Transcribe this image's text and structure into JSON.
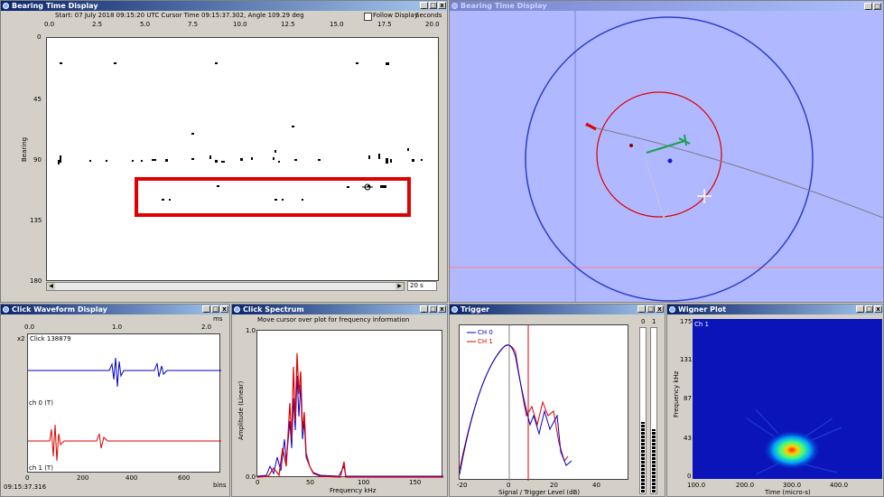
{
  "bearing_time": {
    "title": "Bearing Time Display",
    "info": "Start: 07 July 2018 09:15:20 UTC   Cursor Time 09:15:37.302, Angle 109.29 deg",
    "follow_label": "Follow Display",
    "seconds_label": "Seconds",
    "x_ticks": [
      "0.0",
      "2.5",
      "5.0",
      "7.5",
      "10.0",
      "12.5",
      "15.0",
      "17.5",
      "20.0"
    ],
    "y_ticks": [
      "0",
      "45",
      "90",
      "135",
      "180"
    ],
    "y_axis_label": "Bearing",
    "span_value": "20 s"
  },
  "map_view": {
    "title": "Bearing Time Display",
    "bg_color": "#b0b8ff"
  },
  "click_waveform": {
    "title": "Click Waveform Display",
    "unit": "ms",
    "x_ticks": [
      "0.0",
      "1.0",
      "2.0"
    ],
    "scale": "x2",
    "click_label": "Click 138879",
    "ch0_label": "ch 0 (T)",
    "ch1_label": "ch 1 (T)",
    "bins_ticks": [
      "0",
      "200",
      "400",
      "600"
    ],
    "bins_label": "bins",
    "time_label": "09:15:37.316"
  },
  "click_spectrum": {
    "title": "Click Spectrum",
    "hint": "Move cursor over plot for frequency information",
    "y_ticks": [
      "1.0",
      "0.0"
    ],
    "y_axis_label": "Amplitude (Linear)",
    "x_ticks": [
      "0",
      "50",
      "100",
      "150"
    ],
    "x_axis_label": "Frequency kHz"
  },
  "trigger": {
    "title": "Trigger",
    "legend_ch0": "CH 0",
    "legend_ch1": "CH 1",
    "x_ticks": [
      "-20",
      "0",
      "20",
      "40"
    ],
    "x_axis_label": "Signal / Trigger Level (dB)",
    "meter_labels": [
      "0",
      "1"
    ],
    "ch0_color": "#0000cc",
    "ch1_color": "#e00000"
  },
  "wigner": {
    "title": "Wigner Plot",
    "channel": "Ch 1",
    "y_ticks": [
      "175",
      "131",
      "87",
      "43",
      "0"
    ],
    "y_axis_label": "Frequency kHz",
    "x_ticks": [
      "100.0",
      "200.0",
      "300.0",
      "400.0"
    ],
    "x_axis_label": "Time (micro-s)"
  }
}
